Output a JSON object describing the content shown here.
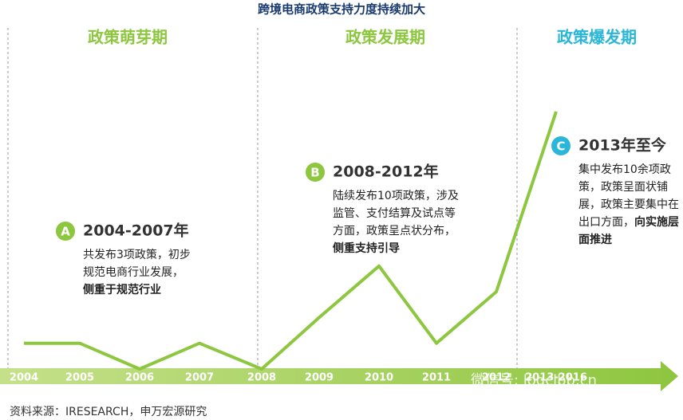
{
  "chart_data": {
    "type": "line",
    "title": "跨境电商政策支持力度持续加大",
    "categories": [
      "2004",
      "2005",
      "2006",
      "2007",
      "2008",
      "2009",
      "2010",
      "2011",
      "2012",
      "2013-2016"
    ],
    "values": [
      1,
      1,
      0,
      1,
      0,
      2,
      4,
      1,
      3,
      10
    ],
    "ylim": [
      0,
      10
    ],
    "color": "#8dc63f",
    "phases": [
      {
        "name": "政策萌芽期",
        "color": "#8dc63f"
      },
      {
        "name": "政策发展期",
        "color": "#8dc63f"
      },
      {
        "name": "政策爆发期",
        "color": "#29b6d8"
      }
    ],
    "annotations": [
      {
        "letter": "A",
        "heading": "2004-2007年",
        "color": "#8dc63f",
        "lines": [
          [
            {
              "text": "共发布3项政策，初步",
              "bold": false
            }
          ],
          [
            {
              "text": "规范电商行业发展，",
              "bold": false
            }
          ],
          [
            {
              "text": "侧重于规范行业",
              "bold": true
            }
          ]
        ]
      },
      {
        "letter": "B",
        "heading": "2008-2012年",
        "color": "#8dc63f",
        "lines": [
          [
            {
              "text": "陆续发布10项政策，涉及",
              "bold": false
            }
          ],
          [
            {
              "text": "监管、支付结算及试点等",
              "bold": false
            }
          ],
          [
            {
              "text": "方面，政策呈点状分布，",
              "bold": false
            }
          ],
          [
            {
              "text": "侧重支持引导",
              "bold": true
            }
          ]
        ]
      },
      {
        "letter": "C",
        "heading": "2013年至今",
        "color": "#29b6d8",
        "lines": [
          [
            {
              "text": "集中发布10余项政",
              "bold": false
            }
          ],
          [
            {
              "text": "策，政策呈面状铺",
              "bold": false
            }
          ],
          [
            {
              "text": "展，政策主要集中在",
              "bold": false
            }
          ],
          [
            {
              "text": "出口方面，",
              "bold": false
            },
            {
              "text": "向实施层",
              "bold": true
            }
          ],
          [
            {
              "text": "面推进",
              "bold": true
            }
          ]
        ]
      }
    ],
    "source": "资料来源：IRESEARCH，申万宏源研究",
    "watermark": "微信号: logclbb.cn"
  }
}
